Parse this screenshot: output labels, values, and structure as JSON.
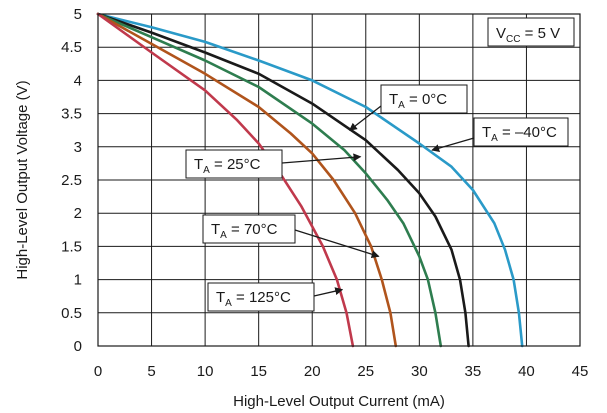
{
  "chart_data": {
    "type": "line",
    "xlabel": "High-Level Output Current (mA)",
    "ylabel": "High-Level Output Voltage (V)",
    "xlim": [
      0,
      45
    ],
    "ylim": [
      0,
      5
    ],
    "xticks": [
      0,
      5,
      10,
      15,
      20,
      25,
      30,
      35,
      40,
      45
    ],
    "yticks": [
      0,
      0.5,
      1,
      1.5,
      2,
      2.5,
      3,
      3.5,
      4,
      4.5,
      5
    ],
    "xtick_labels": [
      "0",
      "5",
      "10",
      "15",
      "20",
      "25",
      "30",
      "35",
      "40",
      "45"
    ],
    "ytick_labels": [
      "0",
      "0.5",
      "1",
      "1.5",
      "2",
      "2.5",
      "3",
      "3.5",
      "4",
      "4.5",
      "5"
    ],
    "grid": true,
    "legend": "none",
    "annotation_vcc": {
      "main": "V",
      "sub": "CC",
      "rest": " = 5 V"
    },
    "series": [
      {
        "label_main": "T",
        "label_sub": "A",
        "label_rest": " = –40°C",
        "color": "#2a9ac8",
        "points": [
          [
            0,
            5
          ],
          [
            5,
            4.8
          ],
          [
            10,
            4.58
          ],
          [
            15,
            4.3
          ],
          [
            20,
            4.0
          ],
          [
            25,
            3.6
          ],
          [
            30,
            3.05
          ],
          [
            33,
            2.7
          ],
          [
            35,
            2.35
          ],
          [
            37,
            1.85
          ],
          [
            38,
            1.45
          ],
          [
            38.8,
            1.0
          ],
          [
            39.3,
            0.5
          ],
          [
            39.6,
            0
          ]
        ]
      },
      {
        "label_main": "T",
        "label_sub": "A",
        "label_rest": " = 0°C",
        "color": "#1a1a1a",
        "points": [
          [
            0,
            5
          ],
          [
            5,
            4.72
          ],
          [
            10,
            4.42
          ],
          [
            15,
            4.1
          ],
          [
            20,
            3.65
          ],
          [
            25,
            3.1
          ],
          [
            28,
            2.65
          ],
          [
            30,
            2.3
          ],
          [
            31.5,
            1.95
          ],
          [
            33,
            1.45
          ],
          [
            33.8,
            1.0
          ],
          [
            34.3,
            0.5
          ],
          [
            34.6,
            0
          ]
        ]
      },
      {
        "label_main": "T",
        "label_sub": "A",
        "label_rest": " = 25°C",
        "color": "#2e7d4f",
        "points": [
          [
            0,
            5
          ],
          [
            5,
            4.65
          ],
          [
            10,
            4.3
          ],
          [
            15,
            3.9
          ],
          [
            20,
            3.35
          ],
          [
            23,
            2.95
          ],
          [
            25,
            2.6
          ],
          [
            27,
            2.2
          ],
          [
            28.5,
            1.85
          ],
          [
            30,
            1.35
          ],
          [
            30.8,
            1.0
          ],
          [
            31.5,
            0.5
          ],
          [
            32,
            0
          ]
        ]
      },
      {
        "label_main": "T",
        "label_sub": "A",
        "label_rest": " = 70°C",
        "color": "#b0541c",
        "points": [
          [
            0,
            5
          ],
          [
            5,
            4.55
          ],
          [
            10,
            4.1
          ],
          [
            15,
            3.6
          ],
          [
            18,
            3.2
          ],
          [
            20,
            2.9
          ],
          [
            22,
            2.5
          ],
          [
            24,
            2.0
          ],
          [
            25.5,
            1.5
          ],
          [
            26.5,
            1.0
          ],
          [
            27.3,
            0.5
          ],
          [
            27.8,
            0
          ]
        ]
      },
      {
        "label_main": "T",
        "label_sub": "A",
        "label_rest": " = 125°C",
        "color": "#c0394c",
        "points": [
          [
            0,
            5
          ],
          [
            5,
            4.42
          ],
          [
            10,
            3.85
          ],
          [
            13,
            3.4
          ],
          [
            15,
            3.05
          ],
          [
            17,
            2.6
          ],
          [
            19,
            2.1
          ],
          [
            21,
            1.5
          ],
          [
            22.3,
            1.0
          ],
          [
            23.2,
            0.5
          ],
          [
            23.8,
            0
          ]
        ]
      }
    ],
    "series_labels": [
      {
        "idx": 0,
        "text_main": "T",
        "text_sub": "A",
        "text_rest": " = –40°C"
      },
      {
        "idx": 1,
        "text_main": "T",
        "text_sub": "A",
        "text_rest": " = 0°C"
      },
      {
        "idx": 2,
        "text_main": "T",
        "text_sub": "A",
        "text_rest": " = 25°C"
      },
      {
        "idx": 3,
        "text_main": "T",
        "text_sub": "A",
        "text_rest": " = 70°C"
      },
      {
        "idx": 4,
        "text_main": "T",
        "text_sub": "A",
        "text_rest": " = 125°C"
      }
    ]
  }
}
